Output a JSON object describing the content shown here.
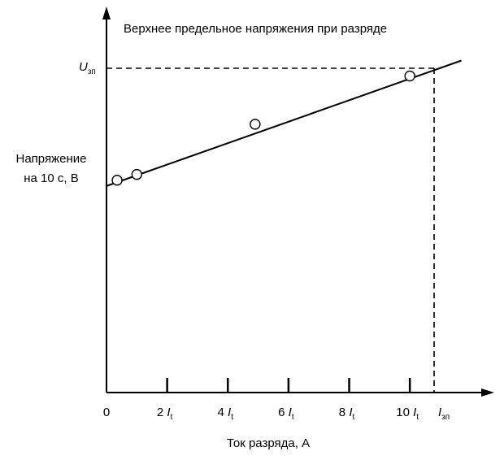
{
  "chart_data": {
    "type": "scatter",
    "title": "Верхнее предельное напряжения при разряде",
    "ylabel": [
      "Напряжение",
      "на 10 с, В"
    ],
    "xlabel": "Ток разряда, А",
    "origin_label": "0",
    "x_ticks": [
      {
        "value": 2,
        "number": "2",
        "symbol": "I",
        "sub": "t"
      },
      {
        "value": 4,
        "number": "4",
        "symbol": "I",
        "sub": "t"
      },
      {
        "value": 6,
        "number": "6",
        "symbol": "I",
        "sub": "t"
      },
      {
        "value": 8,
        "number": "8",
        "symbol": "I",
        "sub": "t"
      },
      {
        "value": 10,
        "number": "10",
        "symbol": "I",
        "sub": "t"
      }
    ],
    "x_limit_label": {
      "symbol": "I",
      "sub": "зп",
      "value": 10.8
    },
    "y_limit_label": {
      "symbol": "U",
      "sub": "зп",
      "value": 0.84
    },
    "xlim": [
      0,
      12.3
    ],
    "ylim": [
      0,
      1.0
    ],
    "points": [
      {
        "x": 0.35,
        "y": 0.55
      },
      {
        "x": 1.0,
        "y": 0.565
      },
      {
        "x": 4.9,
        "y": 0.695
      },
      {
        "x": 10.0,
        "y": 0.82
      }
    ],
    "fit_line": {
      "x0": 0,
      "y0": 0.535,
      "x1": 11.7,
      "y1": 0.86
    },
    "grid": false,
    "colors": {
      "ink": "#000000",
      "marker_fill": "#ffffff"
    }
  }
}
